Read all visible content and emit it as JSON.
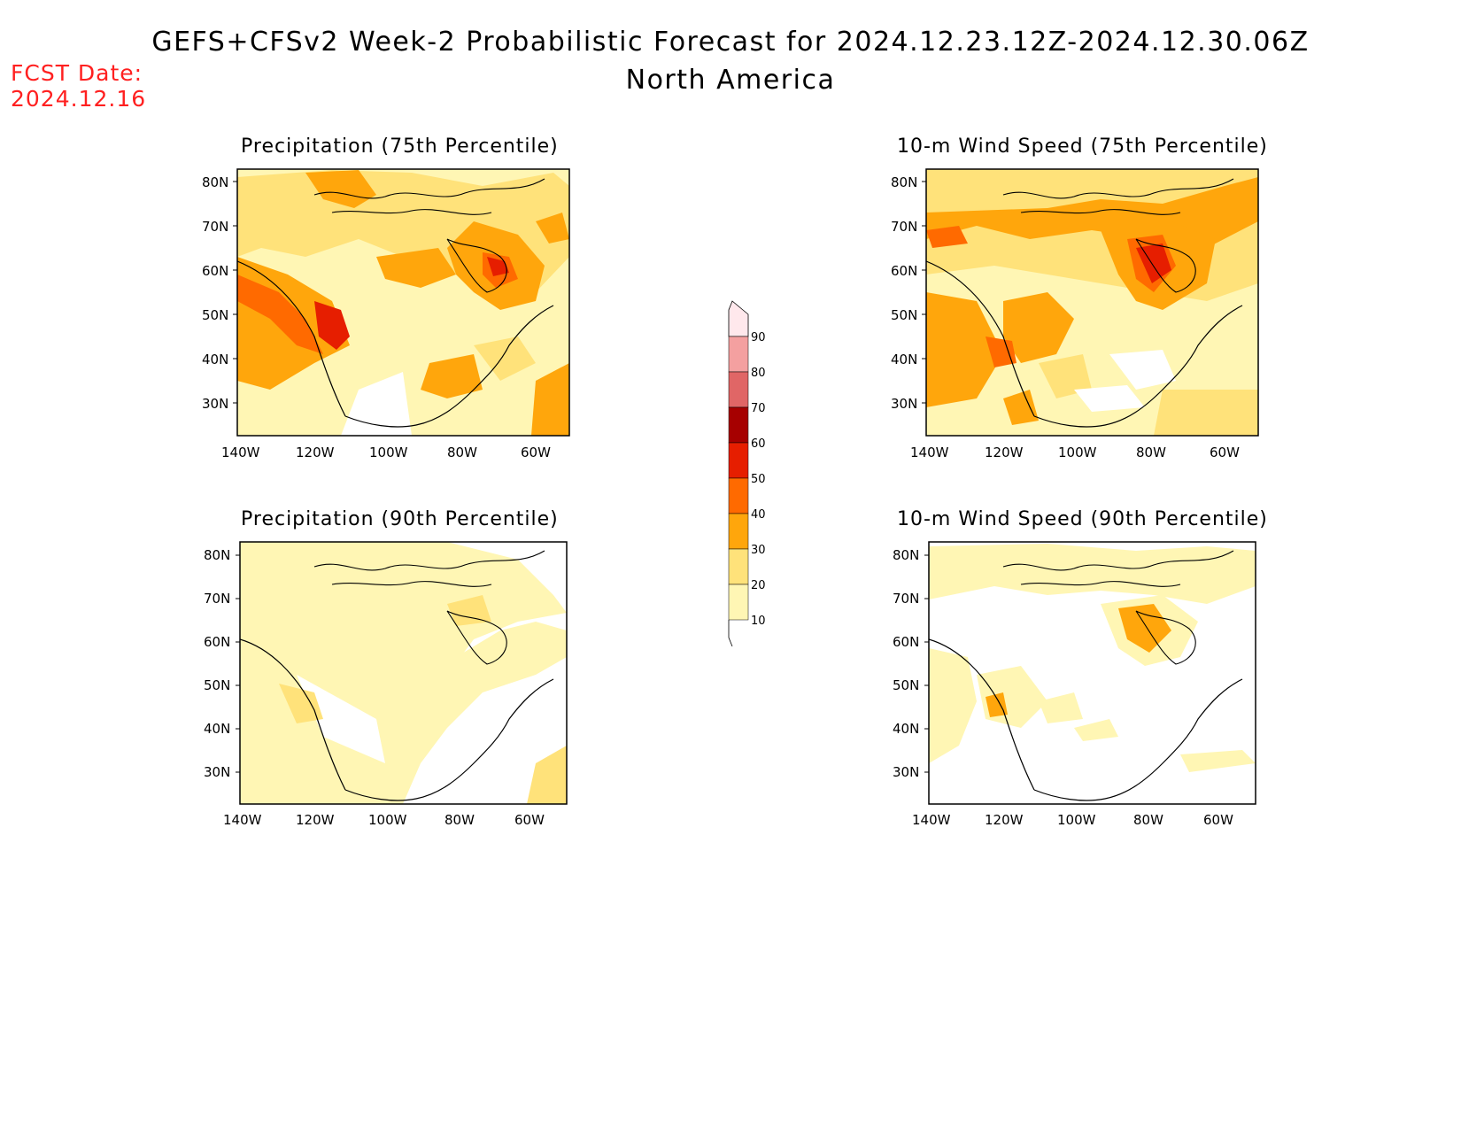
{
  "header": {
    "title_line1": "GEFS+CFSv2 Week-2 Probabilistic Forecast for 2024.12.23.12Z-2024.12.30.06Z",
    "title_line2": "North America",
    "fcst_label": "FCST Date:",
    "fcst_date": "2024.12.16"
  },
  "axes": {
    "lat_ticks": [
      "80N",
      "70N",
      "60N",
      "50N",
      "40N",
      "30N"
    ],
    "lon_ticks": [
      "140W",
      "120W",
      "100W",
      "80W",
      "60W"
    ]
  },
  "colors": {
    "c10": "#fff6b4",
    "c20": "#ffe27a",
    "c30": "#ffa60c",
    "c40": "#ff6a00",
    "c50": "#e61e00",
    "c60": "#a60000",
    "c70": "#e06666",
    "c80": "#f4a0a0",
    "c90": "#ffe8ec"
  },
  "panels": {
    "precip75": {
      "title": "Precipitation (75th Percentile)"
    },
    "wind75": {
      "title": "10-m Wind Speed (75th Percentile)"
    },
    "precip90": {
      "title": "Precipitation (90th Percentile)"
    },
    "wind90": {
      "title": "10-m Wind Speed (90th Percentile)"
    }
  },
  "colorbar": {
    "levels": [
      "90",
      "80",
      "70",
      "60",
      "50",
      "40",
      "30",
      "20",
      "10"
    ]
  }
}
